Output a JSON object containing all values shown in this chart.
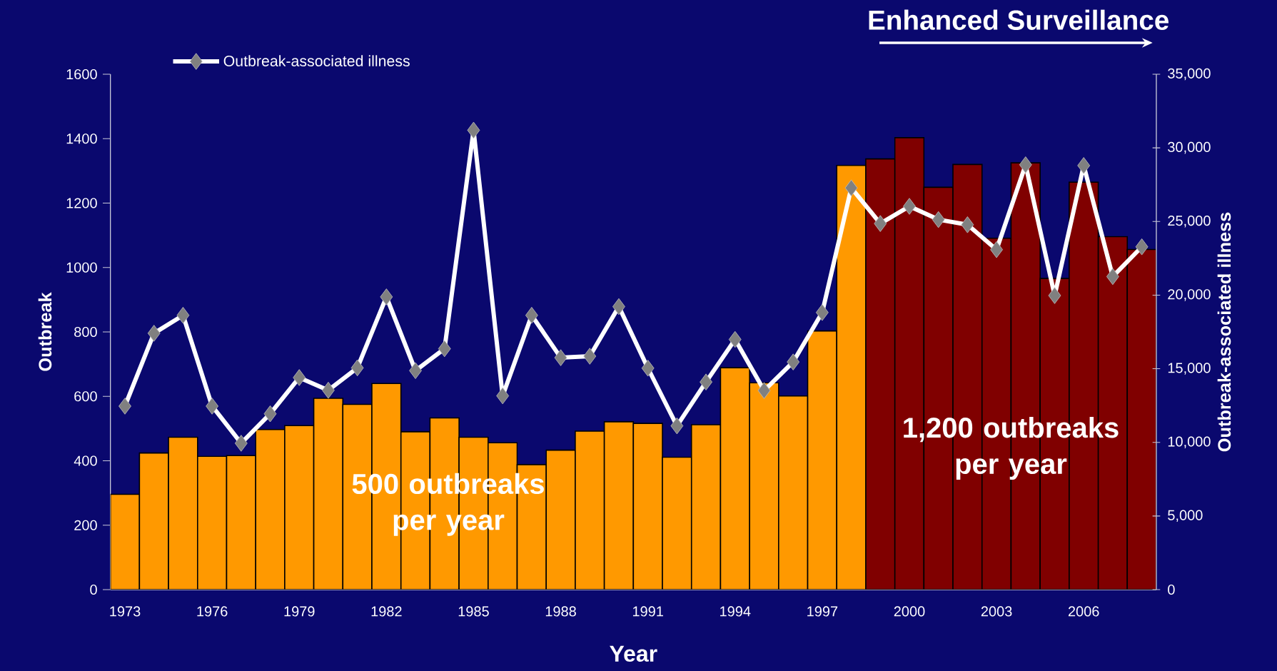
{
  "chart_data": {
    "type": "bar",
    "xlabel": "Year",
    "ylabel": "Outbreak",
    "y2label": "Outbreak-associated illness",
    "annotations": [
      "Enhanced Surveillance",
      "500 outbreaks per year",
      "1,200 outbreaks per year"
    ],
    "categories": [
      "1973",
      null,
      null,
      "1976",
      null,
      null,
      "1979",
      null,
      null,
      "1982",
      null,
      null,
      "1985",
      null,
      null,
      "1988",
      null,
      null,
      "1991",
      null,
      null,
      "1994",
      null,
      null,
      "1997",
      null,
      null,
      "2000",
      null,
      null,
      "2003",
      null,
      null,
      "2006",
      null,
      null
    ],
    "series": [
      {
        "colors": [
          "#ff9900",
          "#ff9900",
          "#ff9900",
          "#ff9900",
          "#ff9900",
          "#ff9900",
          "#ff9900",
          "#ff9900",
          "#ff9900",
          "#ff9900",
          "#ff9900",
          "#ff9900",
          "#ff9900",
          "#ff9900",
          "#ff9900",
          "#ff9900",
          "#ff9900",
          "#ff9900",
          "#ff9900",
          "#ff9900",
          "#ff9900",
          "#ff9900",
          "#ff9900",
          "#ff9900",
          "#ff9900",
          "#ff9900",
          "#800000",
          "#800000",
          "#800000",
          "#800000",
          "#800000",
          "#800000",
          "#800000",
          "#800000",
          "#800000",
          "#800000"
        ],
        "values": [
          296,
          424,
          473,
          414,
          416,
          497,
          509,
          594,
          575,
          640,
          490,
          533,
          473,
          456,
          388,
          433,
          492,
          521,
          516,
          411,
          512,
          689,
          642,
          601,
          803,
          1317,
          1337,
          1403,
          1249,
          1320,
          1091,
          1325,
          966,
          1265,
          1096,
          1056
        ]
      },
      {
        "type": "line",
        "name": "Outbreak-associated illness",
        "color": "#ffffff",
        "axis": "y2",
        "values": [
          12460,
          17410,
          18630,
          12460,
          9940,
          11940,
          14400,
          13540,
          15060,
          19880,
          14870,
          16360,
          31200,
          13160,
          18630,
          15750,
          15850,
          19220,
          15040,
          11120,
          14100,
          16990,
          13520,
          15460,
          18820,
          27280,
          24860,
          26030,
          25130,
          24780,
          23090,
          28850,
          19970,
          28800,
          21260,
          23280
        ]
      }
    ],
    "ylim": [
      0,
      1600
    ],
    "yticks": [
      0,
      200,
      400,
      600,
      800,
      1000,
      1200,
      1400,
      1600
    ],
    "y2lim": [
      0,
      35000
    ],
    "y2ticks": [
      0,
      {
        "value": 5000,
        "label": "5,000"
      },
      {
        "value": 10000,
        "label": "10,000"
      },
      {
        "value": 15000,
        "label": "15,000"
      },
      {
        "value": 20000,
        "label": "20,000"
      },
      {
        "value": 25000,
        "label": "25,000"
      },
      {
        "value": 30000,
        "label": "30,000"
      },
      {
        "value": 35000,
        "label": "35,000"
      }
    ],
    "legend": "top left",
    "marker": "diamond",
    "line_style": "solid"
  }
}
